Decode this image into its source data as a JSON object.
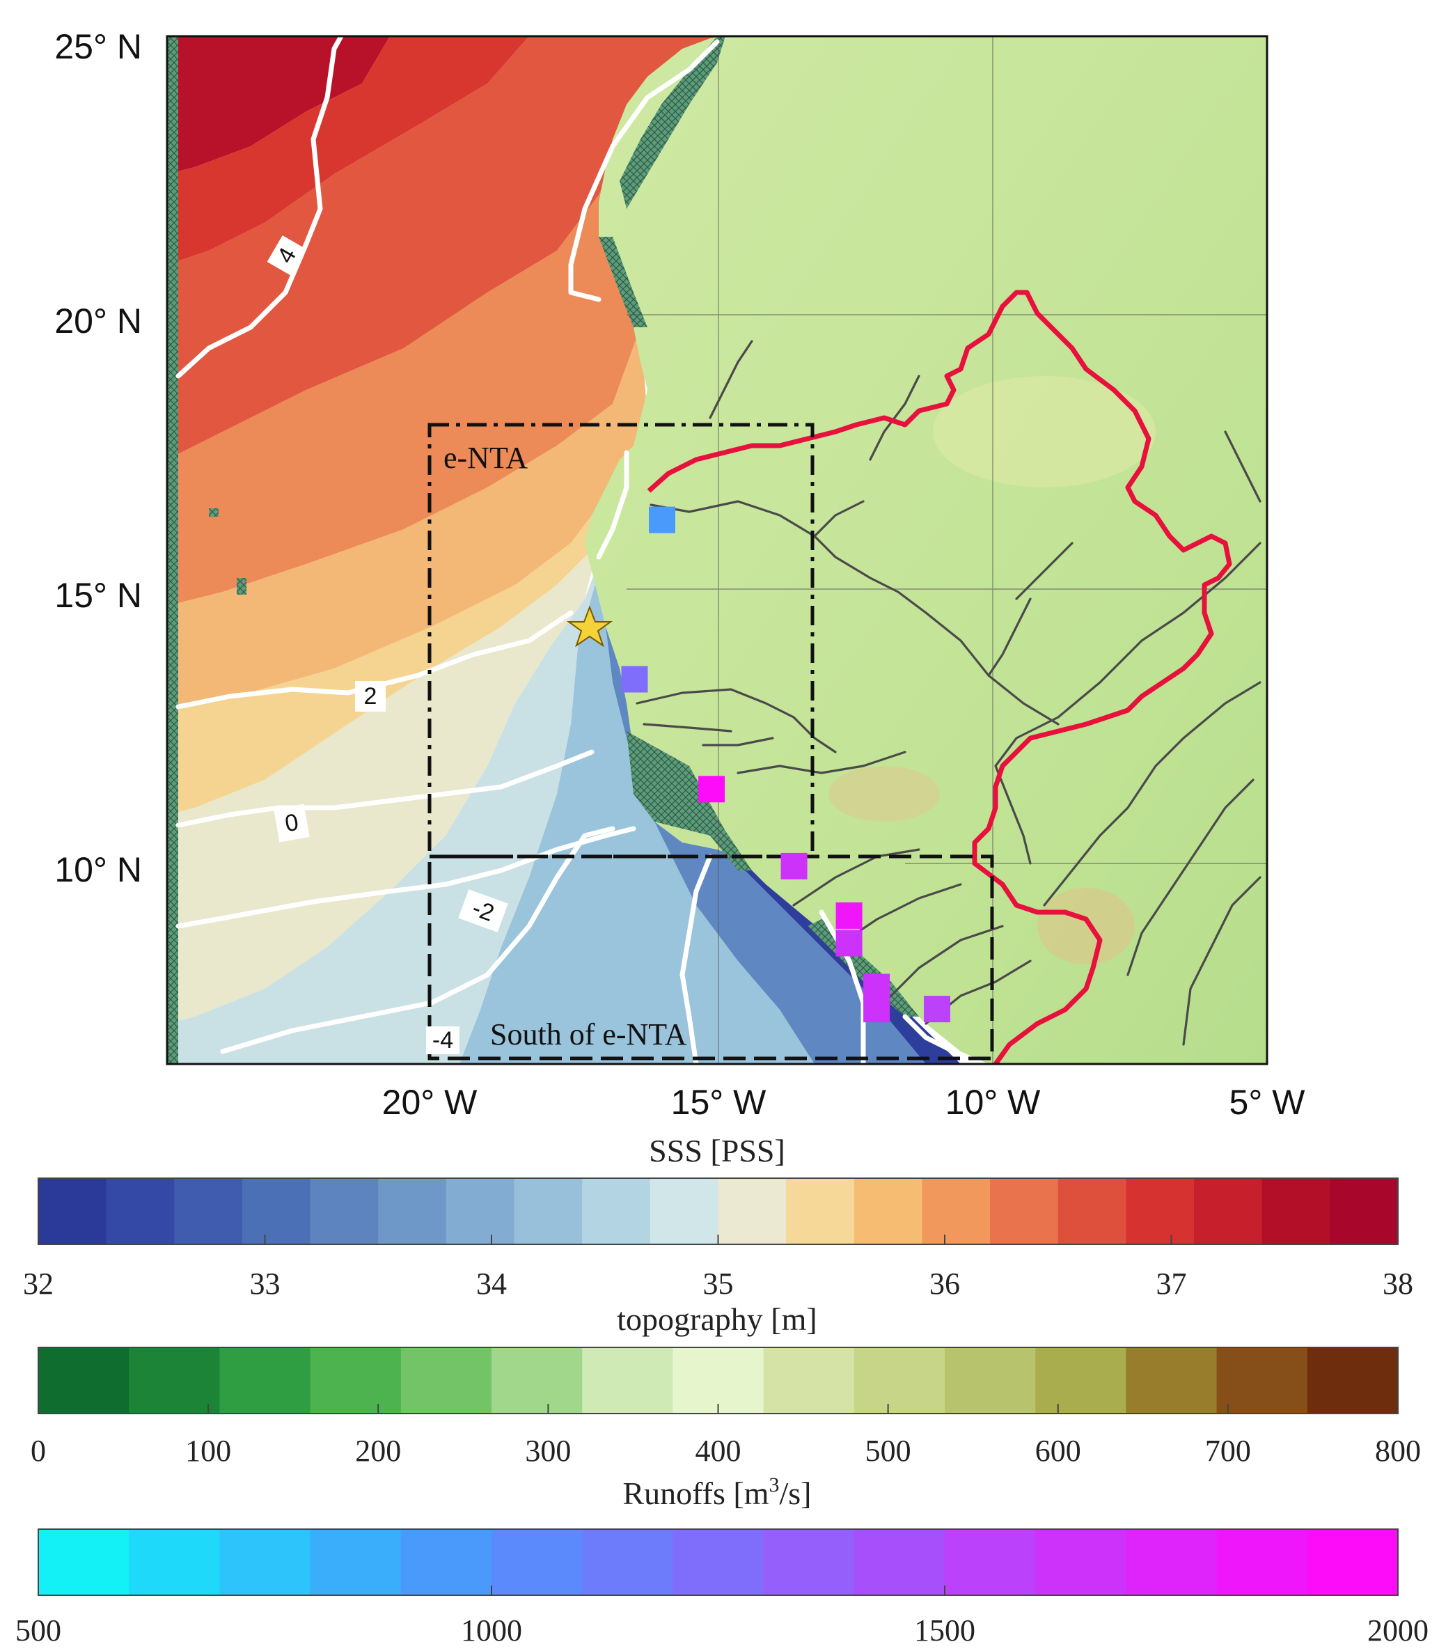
{
  "map": {
    "lat_labels": [
      {
        "value": 25,
        "text": "25° N"
      },
      {
        "value": 20,
        "text": "20° N"
      },
      {
        "value": 15,
        "text": "15° N"
      },
      {
        "value": 10,
        "text": "10° N"
      }
    ],
    "lon_labels": [
      {
        "value": -20,
        "text": "20° W"
      },
      {
        "value": -15,
        "text": "15° W"
      },
      {
        "value": -10,
        "text": "10° W"
      },
      {
        "value": -5,
        "text": "5° W"
      }
    ],
    "extent": {
      "lon": [
        -25,
        -5
      ],
      "lat": [
        6.3,
        25
      ]
    },
    "regions": [
      {
        "name": "e-NTA",
        "label": "e-NTA",
        "lon": [
          -20,
          -13
        ],
        "lat": [
          10.2,
          18
        ]
      },
      {
        "name": "south-of-e-NTA",
        "label": "South of e-NTA",
        "lon": [
          -20,
          -10
        ],
        "lat": [
          6.3,
          10.2
        ]
      }
    ],
    "contour_labels": [
      "4",
      "2",
      "0",
      "-2",
      "-4"
    ],
    "river_mouths": [
      {
        "lon": -16.0,
        "lat": 16.2,
        "runoff": 950
      },
      {
        "lon": -16.5,
        "lat": 13.3,
        "runoff": 1250
      },
      {
        "lon": -15.1,
        "lat": 11.3,
        "runoff": 1950
      },
      {
        "lon": -13.6,
        "lat": 9.9,
        "runoff": 1650
      },
      {
        "lon": -12.6,
        "lat": 9.0,
        "runoff": 1850
      },
      {
        "lon": -12.6,
        "lat": 8.5,
        "runoff": 1600
      },
      {
        "lon": -12.1,
        "lat": 7.7,
        "runoff": 1600
      },
      {
        "lon": -12.1,
        "lat": 7.3,
        "runoff": 1600
      },
      {
        "lon": -11.0,
        "lat": 7.3,
        "runoff": 1550
      }
    ],
    "station_marker": "star-icon",
    "colors": {
      "basin_outline": "#e8103c",
      "region_box": "#111111",
      "contour": "#ffffff",
      "station": "#f4d23a"
    }
  },
  "colorbars": {
    "sss": {
      "title": "SSS [PSS]",
      "ticks": [
        "32",
        "33",
        "34",
        "35",
        "36",
        "37",
        "38"
      ],
      "range": [
        32,
        38
      ],
      "colors": [
        "#2b3a99",
        "#3449a5",
        "#3f5cae",
        "#4c70b6",
        "#5d84be",
        "#6e98c7",
        "#82acd1",
        "#98c0db",
        "#b3d5e3",
        "#d0e6e9",
        "#ece9d2",
        "#f6d898",
        "#f6bd72",
        "#f1995d",
        "#e8734c",
        "#df503c",
        "#d6322f",
        "#c71f2c",
        "#b40f28",
        "#a8062a"
      ]
    },
    "topography": {
      "title": "topography [m]",
      "ticks": [
        "0",
        "100",
        "200",
        "300",
        "400",
        "500",
        "600",
        "700",
        "800"
      ],
      "range": [
        0,
        800
      ],
      "colors": [
        "#0f6e2f",
        "#1c8437",
        "#2f9d42",
        "#4cb34f",
        "#73c466",
        "#a0d78a",
        "#cfeab4",
        "#e6f5cc",
        "#d6e3a6",
        "#c6d588",
        "#b7c46d",
        "#a9ad4e",
        "#987d2d",
        "#864f1a",
        "#6e2d0d"
      ]
    },
    "runoffs": {
      "title_prefix": "Runoffs [m",
      "title_sup": "3",
      "title_suffix": "/s]",
      "ticks": [
        "500",
        "1000",
        "1500",
        "2000"
      ],
      "range": [
        500,
        2000
      ],
      "colors": [
        "#13f1f7",
        "#1ed9f9",
        "#2dc3fb",
        "#3aaefb",
        "#4a9afb",
        "#5a8afb",
        "#6c7cfb",
        "#7f6efb",
        "#945ffb",
        "#a74ffb",
        "#bb41fb",
        "#cd32fb",
        "#df24fb",
        "#f016fb",
        "#fc0cf8"
      ]
    }
  }
}
